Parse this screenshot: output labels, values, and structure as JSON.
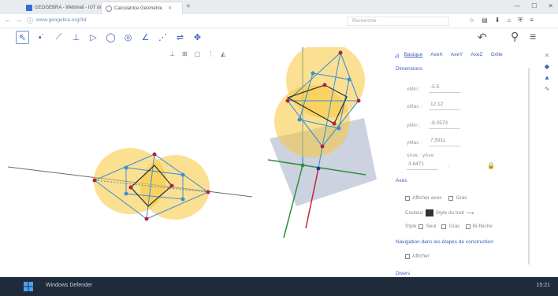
{
  "browser": {
    "tabs": [
      {
        "label": "GEOGEBRA - Webmail - IUT de...",
        "favicon_color": "#2f6fd6"
      },
      {
        "label": "Calculatrice Géométrie",
        "favicon_color": "#ffffff"
      }
    ],
    "url": "www.geogebra.org/3d",
    "search_placeholder": "Rechercher"
  },
  "toolbar": {
    "tools": [
      "pointer-tool",
      "point-tool",
      "line-tool",
      "perpendicular-tool",
      "polygon-tool",
      "circle-tool",
      "sphere-tool",
      "angle-tool",
      "reflect-tool",
      "rotate-view-tool",
      "move-graphics-tool"
    ],
    "undo_icon": "undo-icon",
    "search_icon": "search-icon",
    "menu_icon": "menu-icon"
  },
  "style_bar": [
    "show-axes-icon",
    "show-grid-icon",
    "view-in-front-icon",
    "more-icon",
    "projection-icon"
  ],
  "properties": {
    "tabs": [
      "Basique",
      "AxeX",
      "AxeY",
      "AxeZ",
      "Grille"
    ],
    "dimensions_title": "Dimensions",
    "fields": [
      {
        "label": "xMin :",
        "value": "-5.5"
      },
      {
        "label": "xMax :",
        "value": "12.12"
      },
      {
        "label": "yMin :",
        "value": "-8.0573"
      },
      {
        "label": "yMax :",
        "value": "7.5911"
      }
    ],
    "ratio_label": "xAxe : yAxe",
    "ratio_left": "3.8471",
    "ratio_right": ":",
    "lock_icon": "lock-icon",
    "axes_title": "Axes",
    "checks_1": [
      "Afficher axes",
      "Gras"
    ],
    "color_label": "Couleur",
    "linestyle_label": "Style du trait",
    "checks_2": [
      "Style",
      "Seul",
      "Gras",
      "Bi-flèche"
    ],
    "navbar_label": "Navigation dans les étapes de construction",
    "show_label": "Afficher",
    "misc_title": "Divers"
  },
  "side_icons": [
    "close-icon",
    "graphics-icon",
    "view3d-icon",
    "algebra-icon"
  ],
  "taskbar": {
    "label": "Windows Defender",
    "clock": "15:21"
  },
  "colors": {
    "accent": "#3b5fb8",
    "highlight": "#f7c638",
    "construction_blue": "#3a8fd8",
    "construction_dark": "#2e2e2e",
    "point_red": "#b81f3a"
  }
}
